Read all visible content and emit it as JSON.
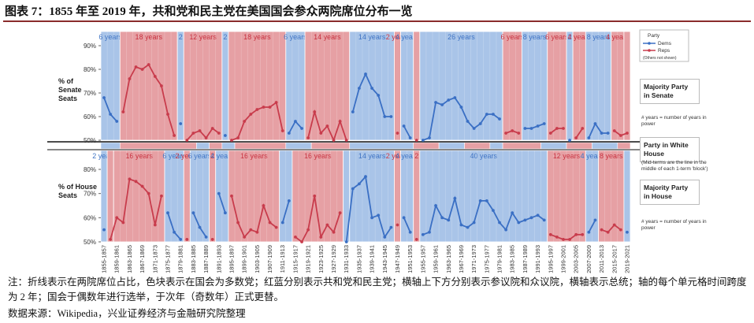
{
  "title": "图表 7：1855 年至 2019 年，共和党和民主党在美国国会参众两院席位分布一览",
  "note": "注：折线表示在两院席位占比，色块表示在国会为多数党；红蓝分别表示共和党和民主党；横轴上下方分别表示参议院和众议院，横轴表示总统；轴的每个单元格时间跨度为 2 年；国会于偶数年进行选举，于次年（奇数年）正式更替。",
  "source": "数据来源：Wikipedia，兴业证券经济与金融研究院整理",
  "legend": {
    "title": "Party",
    "note": "(Others not shown)"
  },
  "band_colors": {
    "D": "#a9c4e8",
    "R": "#e6a0a4"
  },
  "label_colors": {
    "D": "#3f74c4",
    "R": "#c8303e"
  },
  "white_house": {
    "title": "Party in White House",
    "note": "(Mid-terms are the line in the middle of each 1-term 'block')",
    "blocks": [
      {
        "party": "D",
        "years": 6
      },
      {
        "party": "R",
        "years": 24
      },
      {
        "party": "D",
        "years": 4
      },
      {
        "party": "R",
        "years": 4
      },
      {
        "party": "D",
        "years": 4
      },
      {
        "party": "R",
        "years": 16
      },
      {
        "party": "D",
        "years": 8
      },
      {
        "party": "R",
        "years": 12
      },
      {
        "party": "D",
        "years": 20
      },
      {
        "party": "R",
        "years": 8
      },
      {
        "party": "D",
        "years": 8
      },
      {
        "party": "R",
        "years": 8
      },
      {
        "party": "D",
        "years": 4
      },
      {
        "party": "R",
        "years": 12
      },
      {
        "party": "D",
        "years": 8
      },
      {
        "party": "R",
        "years": 8
      },
      {
        "party": "D",
        "years": 8
      },
      {
        "party": "R",
        "years": 4
      }
    ]
  },
  "chart_data": [
    {
      "type": "line",
      "ylabel": "% of Senate Seats",
      "side_title": "Majority Party in Senate",
      "side_note": "# years = number of years in power",
      "ylim": [
        50,
        90
      ],
      "yticks": [
        {
          "value": 50,
          "label": "50%"
        },
        {
          "value": 60,
          "label": "60%"
        },
        {
          "value": 70,
          "label": "70%"
        },
        {
          "value": 80,
          "label": "80%"
        },
        {
          "value": 90,
          "label": "90%"
        }
      ],
      "majority": [
        {
          "party": "D",
          "years": 6,
          "label": "6 years"
        },
        {
          "party": "R",
          "years": 18,
          "label": "18 years"
        },
        {
          "party": "D",
          "years": 2,
          "label": "2"
        },
        {
          "party": "R",
          "years": 12,
          "label": "12 years"
        },
        {
          "party": "D",
          "years": 2,
          "label": "2"
        },
        {
          "party": "R",
          "years": 18,
          "label": "18 years"
        },
        {
          "party": "D",
          "years": 6,
          "label": "6 years"
        },
        {
          "party": "R",
          "years": 14,
          "label": "14 years"
        },
        {
          "party": "D",
          "years": 14,
          "label": "14 years"
        },
        {
          "party": "R",
          "years": 2,
          "label": "2 years"
        },
        {
          "party": "D",
          "years": 4,
          "label": "4 years"
        },
        {
          "party": "R",
          "years": 2
        },
        {
          "party": "D",
          "years": 26,
          "label": "26 years"
        },
        {
          "party": "R",
          "years": 6,
          "label": "6 years"
        },
        {
          "party": "D",
          "years": 8,
          "label": "8 years"
        },
        {
          "party": "R",
          "years": 6,
          "label": "6 years"
        },
        {
          "party": "D",
          "years": 2,
          "label": "2"
        },
        {
          "party": "R",
          "years": 4,
          "label": "4 years"
        },
        {
          "party": "D",
          "years": 8,
          "label": "8 years"
        },
        {
          "party": "R",
          "years": 4,
          "label": "4 years"
        },
        {
          "party": "R",
          "years": 2
        }
      ],
      "series": [
        {
          "name": "Dems",
          "color": "#3a6fc4",
          "values": [
            68,
            61,
            58,
            null,
            null,
            null,
            null,
            null,
            null,
            null,
            null,
            null,
            57,
            null,
            null,
            null,
            null,
            null,
            null,
            52,
            null,
            null,
            null,
            null,
            null,
            null,
            null,
            null,
            null,
            53,
            58,
            55,
            null,
            null,
            null,
            null,
            null,
            null,
            null,
            62,
            72,
            78,
            72,
            69,
            60,
            60,
            null,
            56,
            51,
            null,
            50,
            51,
            66,
            65,
            67,
            68,
            64,
            58,
            55,
            57,
            61,
            61,
            59,
            null,
            null,
            null,
            55,
            55,
            56,
            57,
            null,
            null,
            null,
            50,
            null,
            null,
            51,
            57,
            53,
            53,
            null,
            null,
            null
          ]
        },
        {
          "name": "Reps",
          "color": "#c83c4c",
          "values": [
            null,
            null,
            null,
            62,
            76,
            81,
            80,
            82,
            77,
            73,
            61,
            52,
            null,
            50,
            53,
            54,
            51,
            55,
            53,
            null,
            50,
            51,
            58,
            61,
            63,
            64,
            64,
            66,
            54,
            null,
            null,
            null,
            51,
            62,
            53,
            56,
            50,
            58,
            50,
            null,
            null,
            null,
            null,
            null,
            null,
            null,
            53,
            null,
            null,
            50,
            null,
            null,
            null,
            null,
            null,
            null,
            null,
            null,
            null,
            null,
            null,
            null,
            null,
            53,
            54,
            53,
            null,
            null,
            null,
            null,
            53,
            55,
            55,
            null,
            51,
            55,
            null,
            null,
            null,
            null,
            54,
            52,
            53
          ]
        }
      ]
    },
    {
      "type": "line",
      "ylabel": "% of House Seats",
      "side_title": "Majority Party in House",
      "side_note": "# years = number of years in power",
      "ylim": [
        50,
        80
      ],
      "yticks": [
        {
          "value": 50,
          "label": "50%"
        },
        {
          "value": 60,
          "label": "60%"
        },
        {
          "value": 70,
          "label": "70%"
        },
        {
          "value": 80,
          "label": "80%"
        }
      ],
      "categories": [
        "1855-1857",
        null,
        "1859-1861",
        null,
        "1863-1865",
        null,
        "1867-1869",
        null,
        "1871-1873",
        null,
        "1875-1877",
        null,
        "1879-1881",
        null,
        "1883-1885",
        null,
        "1887-1889",
        null,
        "1891-1893",
        null,
        "1895-1897",
        null,
        "1899-1901",
        null,
        "1903-1905",
        null,
        "1907-1909",
        null,
        "1911-1913",
        null,
        "1915-1917",
        null,
        "1919-1921",
        null,
        "1923-1925",
        null,
        "1927-1929",
        null,
        "1931-1933",
        null,
        "1935-1937",
        null,
        "1939-1941",
        null,
        "1943-1945",
        null,
        "1947-1949",
        null,
        "1951-1953",
        null,
        "1955-1957",
        null,
        "1959-1961",
        null,
        "1963-1965",
        null,
        "1967-1969",
        null,
        "1971-1973",
        null,
        "1975-1977",
        null,
        "1979-1981",
        null,
        "1983-1985",
        null,
        "1987-1989",
        null,
        "1991-1993",
        null,
        "1995-1997",
        null,
        "1999-2001",
        null,
        "2003-2005",
        null,
        "2007-2009",
        null,
        "2011-2013",
        null,
        "2015-2017",
        null,
        "2019-2021"
      ],
      "majority": [
        {
          "party": "D",
          "years": 2,
          "label": "2 years"
        },
        {
          "party": "R",
          "years": 2
        },
        {
          "party": "R",
          "years": 16,
          "label": "16 years"
        },
        {
          "party": "D",
          "years": 6,
          "label": "6 years"
        },
        {
          "party": "R",
          "years": 2,
          "label": "2 years"
        },
        {
          "party": "D",
          "years": 6,
          "label": "6 years"
        },
        {
          "party": "R",
          "years": 2,
          "label": "2"
        },
        {
          "party": "D",
          "years": 4,
          "label": "4 years"
        },
        {
          "party": "R",
          "years": 16,
          "label": "16 years"
        },
        {
          "party": "D",
          "years": 4
        },
        {
          "party": "R",
          "years": 16,
          "label": "16 years"
        },
        {
          "party": "D",
          "years": 2
        },
        {
          "party": "D",
          "years": 14,
          "label": "14 years"
        },
        {
          "party": "R",
          "years": 2,
          "label": "2 years"
        },
        {
          "party": "D",
          "years": 4,
          "label": "4 years"
        },
        {
          "party": "R",
          "years": 2,
          "label": "2"
        },
        {
          "party": "D",
          "years": 40,
          "label": "40 years"
        },
        {
          "party": "R",
          "years": 12,
          "label": "12 years"
        },
        {
          "party": "D",
          "years": 4,
          "label": "4 years"
        },
        {
          "party": "R",
          "years": 8,
          "label": "8 years"
        },
        {
          "party": "D",
          "years": 2
        }
      ],
      "series": [
        {
          "name": "Dems",
          "color": "#3a6fc4",
          "values": [
            55,
            null,
            null,
            null,
            null,
            null,
            null,
            null,
            null,
            null,
            62,
            54,
            51,
            null,
            62,
            56,
            52,
            null,
            70,
            62,
            null,
            null,
            null,
            null,
            null,
            null,
            null,
            null,
            58,
            67,
            null,
            null,
            null,
            null,
            null,
            null,
            null,
            null,
            50,
            72,
            74,
            77,
            60,
            61,
            52,
            56,
            null,
            60,
            54,
            null,
            53,
            54,
            65,
            60,
            59,
            68,
            57,
            56,
            58,
            67,
            67,
            63,
            58,
            55,
            62,
            58,
            59,
            60,
            61,
            59,
            null,
            null,
            null,
            null,
            null,
            null,
            54,
            59,
            null,
            null,
            null,
            null,
            54
          ]
        },
        {
          "name": "Reps",
          "color": "#c83c4c",
          "values": [
            null,
            51,
            60,
            58,
            76,
            75,
            73,
            70,
            57,
            69,
            null,
            null,
            null,
            51,
            null,
            null,
            null,
            51,
            null,
            null,
            69,
            58,
            52,
            55,
            54,
            65,
            58,
            56,
            null,
            null,
            52,
            50,
            55,
            69,
            52,
            57,
            54,
            62,
            null,
            null,
            null,
            null,
            null,
            null,
            null,
            null,
            57,
            null,
            null,
            51,
            null,
            null,
            null,
            null,
            null,
            null,
            null,
            null,
            null,
            null,
            null,
            null,
            null,
            null,
            null,
            null,
            null,
            null,
            null,
            null,
            53,
            52,
            51,
            51,
            53,
            53,
            null,
            null,
            55,
            54,
            57,
            55,
            null
          ]
        }
      ]
    }
  ]
}
